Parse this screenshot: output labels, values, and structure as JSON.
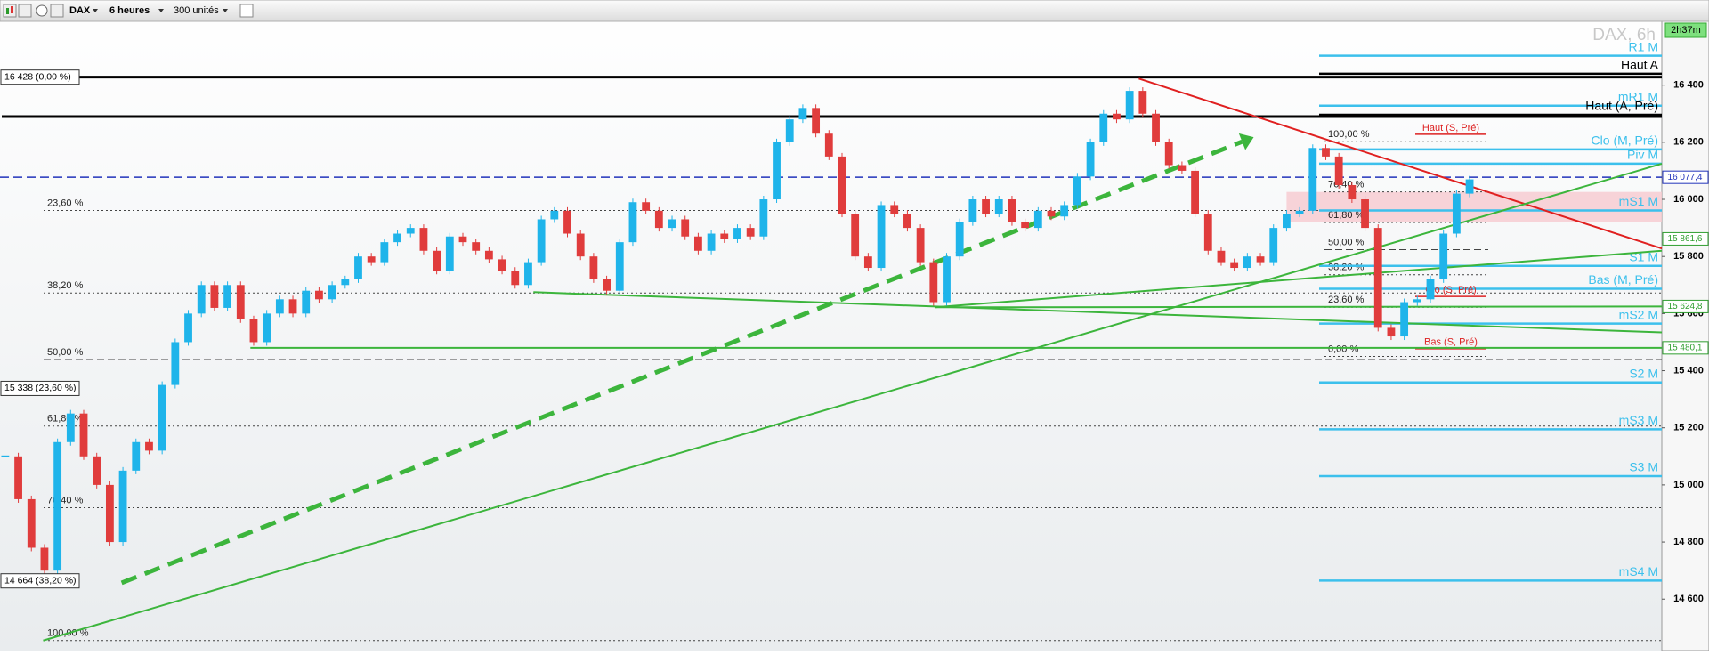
{
  "toolbar": {
    "instrument": "DAX",
    "timeframe": "6 heures",
    "units": "300 unités"
  },
  "chart_data": {
    "type": "candlestick",
    "title": "DAX, 6h",
    "timer": "2h37m",
    "xlim": [
      -0.4,
      126.7
    ],
    "ylim": [
      14420,
      16614
    ],
    "yticks": [
      {
        "value": 14600,
        "label": "14 600"
      },
      {
        "value": 14800,
        "label": "14 800"
      },
      {
        "value": 15000,
        "label": "15 000"
      },
      {
        "value": 15200,
        "label": "15 200"
      },
      {
        "value": 15400,
        "label": "15 400"
      },
      {
        "value": 15600,
        "label": "15 600"
      },
      {
        "value": 15800,
        "label": "15 800"
      },
      {
        "value": 16000,
        "label": "16 000"
      },
      {
        "value": 16200,
        "label": "16 200"
      },
      {
        "value": 16400,
        "label": "16 400"
      }
    ],
    "up_color": "#1fb4ea",
    "down_color": "#e03c3c",
    "values": [
      15100,
      14950,
      14780,
      14700,
      15150,
      15250,
      15100,
      15000,
      14800,
      15050,
      15150,
      15120,
      15350,
      15500,
      15600,
      15700,
      15620,
      15700,
      15580,
      15500,
      15600,
      15650,
      15600,
      15680,
      15650,
      15700,
      15720,
      15800,
      15780,
      15850,
      15880,
      15900,
      15820,
      15750,
      15870,
      15850,
      15820,
      15790,
      15750,
      15700,
      15780,
      15930,
      15960,
      15880,
      15800,
      15720,
      15680,
      15850,
      15990,
      15960,
      15900,
      15930,
      15870,
      15820,
      15880,
      15860,
      15900,
      15870,
      16000,
      16200,
      16280,
      16320,
      16230,
      16150,
      15950,
      15800,
      15760,
      15980,
      15950,
      15900,
      15780,
      15640,
      15800,
      15920,
      16000,
      15950,
      16000,
      15920,
      15900,
      15960,
      15940,
      15980,
      16080,
      16200,
      16300,
      16280,
      16380,
      16300,
      16200,
      16120,
      16100,
      15950,
      15820,
      15780,
      15760,
      15800,
      15780,
      15900,
      15950,
      15960,
      16180,
      16150,
      16050,
      16000,
      15900,
      15550,
      15520,
      15640,
      15650,
      15720,
      15880,
      16020,
      16070
    ],
    "black_lines": [
      16428,
      16290
    ],
    "zone": {
      "x": [
        98.0,
        126.7
      ],
      "y": [
        15919,
        16026
      ],
      "color": "#f6c9cf"
    },
    "levels": [
      {
        "label": "R1 M",
        "value": 16503,
        "color": "#3cc0ec"
      },
      {
        "label": "Haut A",
        "value": 16440,
        "color": "#000000"
      },
      {
        "label": "mR1 M",
        "value": 16328,
        "color": "#3cc0ec"
      },
      {
        "label": "Haut (A, Pré)",
        "value": 16296,
        "color": "#000000"
      },
      {
        "label": "Clo (M, Pré)",
        "value": 16175,
        "color": "#3cc0ec"
      },
      {
        "label": "Piv M",
        "value": 16125,
        "color": "#3cc0ec"
      },
      {
        "label": "mS1 M",
        "value": 15961,
        "color": "#3cc0ec"
      },
      {
        "label": "S1 M",
        "value": 15767,
        "color": "#3cc0ec"
      },
      {
        "label": "Bas (M, Pré)",
        "value": 15687,
        "color": "#3cc0ec"
      },
      {
        "label": "mS2 M",
        "value": 15565,
        "color": "#3cc0ec"
      },
      {
        "label": "S2 M",
        "value": 15359,
        "color": "#3cc0ec"
      },
      {
        "label": "mS3 M",
        "value": 15195,
        "color": "#3cc0ec"
      },
      {
        "label": "S3 M",
        "value": 15031,
        "color": "#3cc0ec"
      },
      {
        "label": "mS4 M",
        "value": 14665,
        "color": "#3cc0ec"
      }
    ],
    "fib_left": [
      {
        "label": "23,60 %",
        "value": 15961
      },
      {
        "label": "38,20 %",
        "value": 15672
      },
      {
        "label": "50,00 %",
        "value": 15439
      },
      {
        "label": "61,80 %",
        "value": 15206
      },
      {
        "label": "76,40 %",
        "value": 14920
      },
      {
        "label": "100,00 %",
        "value": 14455
      }
    ],
    "fib_right": [
      {
        "label": "100,00 %",
        "value": 16202
      },
      {
        "label": "76,40 %",
        "value": 16026
      },
      {
        "label": "61,80 %",
        "value": 15919
      },
      {
        "label": "50,00 %",
        "value": 15824
      },
      {
        "label": "38,20 %",
        "value": 15736
      },
      {
        "label": "23,60 %",
        "value": 15622
      },
      {
        "label": "0,00 %",
        "value": 15450
      }
    ],
    "session_levels": [
      {
        "label": "Haut (S, Pré)",
        "value": 16228
      },
      {
        "label": "Clo (S, Pré)",
        "value": 15660
      },
      {
        "label": "Bas (S, Pré)",
        "value": 15477
      }
    ],
    "price_tags": [
      {
        "value": 16428,
        "label": "16 428 (0,00 %)"
      },
      {
        "value": 15338,
        "label": "15 338 (23,60 %)"
      },
      {
        "value": 14664,
        "label": "14 664 (38,20 %)"
      }
    ],
    "axis_tags": [
      {
        "value": 16077.4,
        "label": "16 077,4",
        "color": "#2233bb",
        "line": "dash"
      },
      {
        "value": 15861.6,
        "label": "15 861,6",
        "color": "#2f9e2f"
      },
      {
        "value": 15624.8,
        "label": "15 624,8",
        "color": "#2f9e2f"
      },
      {
        "value": 15480.1,
        "label": "15 480,1",
        "color": "#2f9e2f"
      }
    ],
    "trendlines": [
      {
        "x": [
          86.7,
          126.7
        ],
        "y": [
          16423,
          15828
        ],
        "color": "#e02020",
        "dash": false
      },
      {
        "x": [
          2.9,
          126.7
        ],
        "y": [
          14455,
          16125
        ],
        "color": "#3cb53c",
        "dash": false
      },
      {
        "x": [
          40.4,
          126.7
        ],
        "y": [
          15675,
          15534
        ],
        "color": "#3cb53c",
        "dash": false
      },
      {
        "x": [
          71.1,
          126.7
        ],
        "y": [
          15622,
          15820
        ],
        "color": "#3cb53c",
        "dash": false
      },
      {
        "x": [
          71.1,
          126.7
        ],
        "y": [
          15622,
          15624.8
        ],
        "color": "#3cb53c",
        "dash": false
      },
      {
        "x": [
          18.75,
          126.7
        ],
        "y": [
          15480.1,
          15480.1
        ],
        "color": "#3cb53c",
        "dash": false
      },
      {
        "x": [
          8.9,
          94.6
        ],
        "y": [
          14657,
          16202
        ],
        "color": "#3cb53c",
        "dash": true
      }
    ]
  }
}
